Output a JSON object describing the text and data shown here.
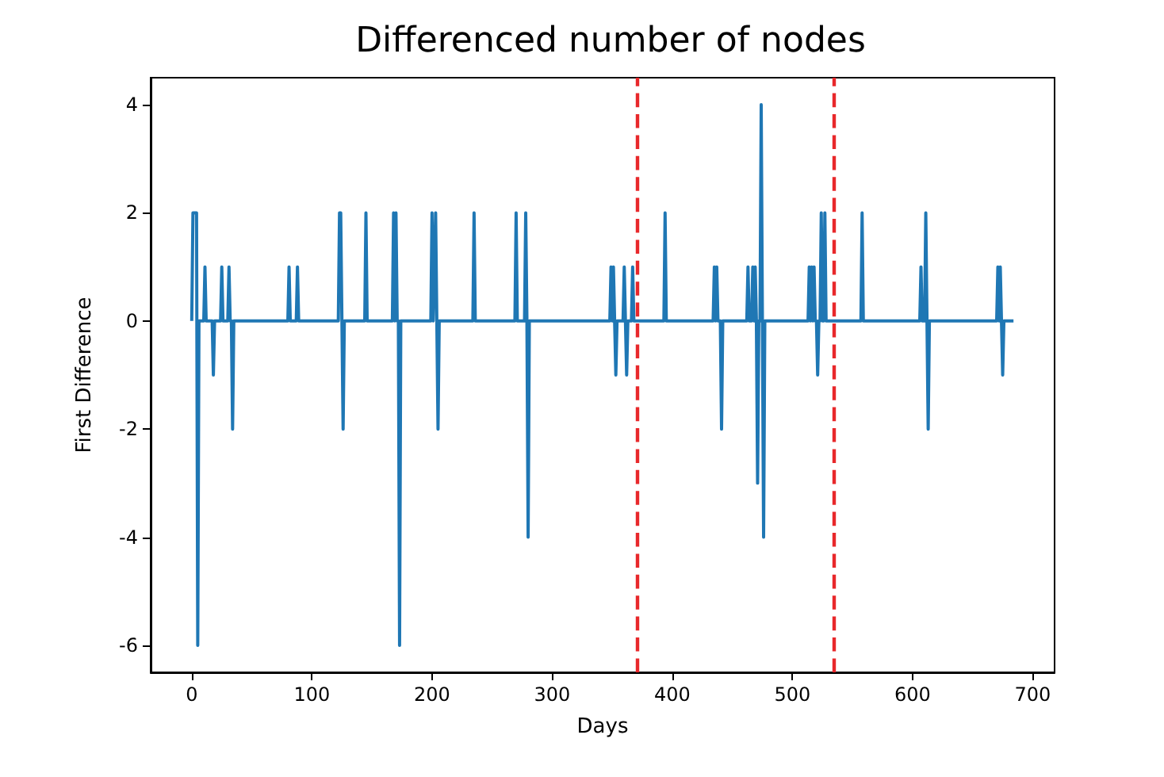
{
  "chart_data": {
    "type": "line",
    "title": "Differenced number of nodes",
    "xlabel": "Days",
    "ylabel": "First Difference",
    "series": [
      {
        "color": "#1f77b4",
        "x": [
          0,
          1,
          4,
          5,
          6,
          10,
          11,
          12,
          17,
          18,
          19,
          24,
          25,
          26,
          30,
          31,
          32,
          33,
          34,
          35,
          80,
          81,
          82,
          87,
          88,
          89,
          122,
          123,
          124,
          125,
          126,
          127,
          144,
          145,
          146,
          167,
          168,
          169,
          170,
          171,
          172,
          173,
          174,
          199,
          200,
          201,
          203,
          204,
          205,
          206,
          234,
          235,
          236,
          269,
          270,
          271,
          277,
          278,
          279,
          280,
          281,
          348,
          349,
          350,
          351,
          352,
          353,
          354,
          359,
          360,
          361,
          362,
          363,
          366,
          367,
          368,
          393,
          394,
          395,
          434,
          435,
          436,
          437,
          438,
          440,
          441,
          442,
          462,
          463,
          464,
          466,
          467,
          468,
          469,
          470,
          471,
          472,
          473,
          474,
          475,
          476,
          477,
          513,
          514,
          515,
          516,
          517,
          518,
          519,
          520,
          521,
          522,
          523,
          524,
          525,
          526,
          527,
          528,
          557,
          558,
          559,
          606,
          607,
          608,
          610,
          611,
          612,
          613,
          614,
          670,
          671,
          672,
          673,
          674,
          675,
          676,
          684
        ],
        "values": [
          0,
          2,
          2,
          -6,
          0,
          0,
          1,
          0,
          0,
          -1,
          0,
          0,
          1,
          0,
          0,
          1,
          0,
          0,
          -2,
          0,
          0,
          1,
          0,
          0,
          1,
          0,
          0,
          2,
          2,
          0,
          -2,
          0,
          0,
          2,
          0,
          0,
          2,
          0,
          2,
          0,
          0,
          -6,
          0,
          0,
          2,
          0,
          2,
          0,
          -2,
          0,
          0,
          2,
          0,
          0,
          2,
          0,
          0,
          2,
          0,
          -4,
          0,
          0,
          1,
          0,
          1,
          0,
          -1,
          0,
          0,
          1,
          0,
          -1,
          0,
          0,
          1,
          0,
          0,
          2,
          0,
          0,
          1,
          0,
          1,
          0,
          0,
          -2,
          0,
          0,
          1,
          0,
          0,
          1,
          0,
          1,
          0,
          -3,
          0,
          0,
          4,
          0,
          -4,
          0,
          0,
          1,
          0,
          1,
          0,
          1,
          0,
          0,
          -1,
          0,
          0,
          2,
          0,
          0,
          2,
          0,
          0,
          2,
          0,
          0,
          1,
          0,
          0,
          2,
          0,
          -2,
          0,
          0,
          1,
          0,
          1,
          0,
          -1,
          0,
          0
        ]
      }
    ],
    "xlim": [
      -34.2,
      718.2
    ],
    "xticks": [
      0,
      100,
      200,
      300,
      400,
      500,
      600,
      700
    ],
    "ylim": [
      -6.5,
      4.5
    ],
    "yticks": [
      -6,
      -4,
      -2,
      0,
      2,
      4
    ],
    "ref_lines": [
      {
        "axis": "x",
        "value": 371,
        "color": "#e8282b",
        "line_style": "dashed"
      },
      {
        "axis": "x",
        "value": 534,
        "color": "#e8282b",
        "line_style": "dashed"
      }
    ],
    "grid": false,
    "marker": "none",
    "line_style": "solid"
  }
}
